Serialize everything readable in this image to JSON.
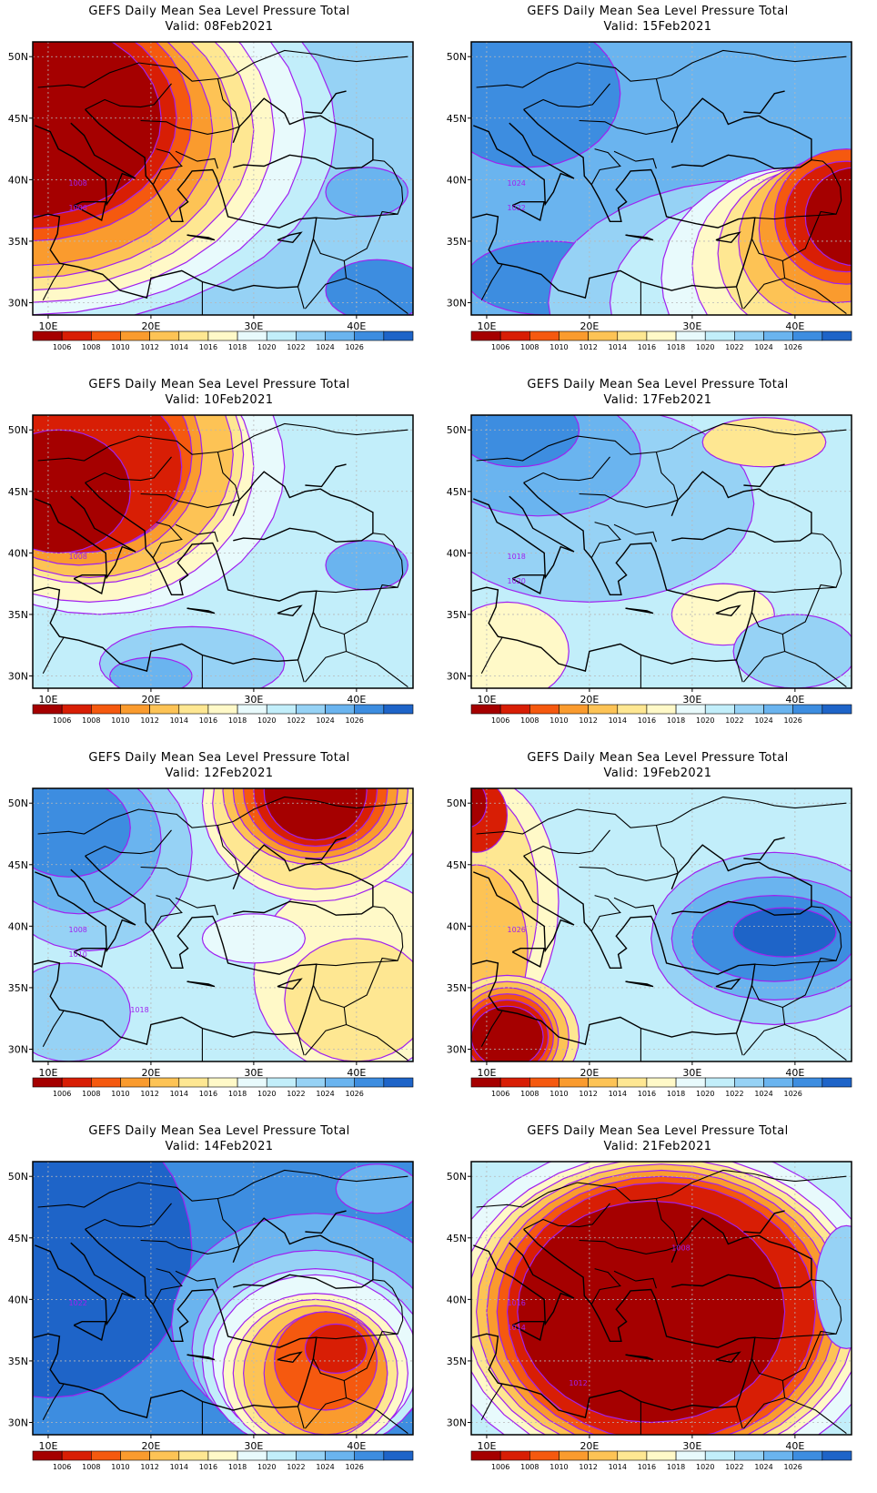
{
  "panels": [
    {
      "id": "p1",
      "title": "GEFS Daily Mean Sea Level Pressure Total",
      "valid": "Valid: 08Feb2021",
      "contour_labels": [
        "1008",
        "1006"
      ],
      "regime": "low-west"
    },
    {
      "id": "p2",
      "title": "GEFS Daily Mean Sea Level Pressure Total",
      "valid": "Valid: 15Feb2021",
      "contour_labels": [
        "1024",
        "1022"
      ],
      "regime": "low-southeast"
    },
    {
      "id": "p3",
      "title": "GEFS Daily Mean Sea Level Pressure Total",
      "valid": "Valid: 10Feb2021",
      "contour_labels": [
        "1008"
      ],
      "regime": "low-northwest"
    },
    {
      "id": "p4",
      "title": "GEFS Daily Mean Sea Level Pressure Total",
      "valid": "Valid: 17Feb2021",
      "contour_labels": [
        "1018",
        "1020"
      ],
      "regime": "weak"
    },
    {
      "id": "p5",
      "title": "GEFS Daily Mean Sea Level Pressure Total",
      "valid": "Valid: 12Feb2021",
      "contour_labels": [
        "1008",
        "1010",
        "1018"
      ],
      "regime": "low-northeast"
    },
    {
      "id": "p6",
      "title": "GEFS Daily Mean Sea Level Pressure Total",
      "valid": "Valid: 19Feb2021",
      "contour_labels": [
        "1026"
      ],
      "regime": "high-east"
    },
    {
      "id": "p7",
      "title": "GEFS Daily Mean Sea Level Pressure Total",
      "valid": "Valid: 14Feb2021",
      "contour_labels": [
        "1022"
      ],
      "regime": "low-southeast2"
    },
    {
      "id": "p8",
      "title": "GEFS Daily Mean Sea Level Pressure Total",
      "valid": "Valid: 21Feb2021",
      "contour_labels": [
        "1016",
        "1014",
        "1012",
        "1008"
      ],
      "regime": "deep-low"
    }
  ],
  "axes": {
    "lon_labels": [
      "10E",
      "20E",
      "30E",
      "40E"
    ],
    "lat_labels": [
      "50N",
      "45N",
      "40N",
      "35N",
      "30N"
    ]
  },
  "colorbar": {
    "colors": [
      "#a50000",
      "#d81e05",
      "#f5590f",
      "#fa9b2e",
      "#fdc355",
      "#fee792",
      "#fff9c8",
      "#e8fafc",
      "#c2eefa",
      "#96d2f5",
      "#6ab4ef",
      "#3d8de0",
      "#1e64c8"
    ],
    "labels": [
      "1006",
      "1008",
      "1010",
      "1012",
      "1014",
      "1016",
      "1018",
      "1020",
      "1022",
      "1024",
      "1026"
    ]
  },
  "contour_color": "#a020f0"
}
